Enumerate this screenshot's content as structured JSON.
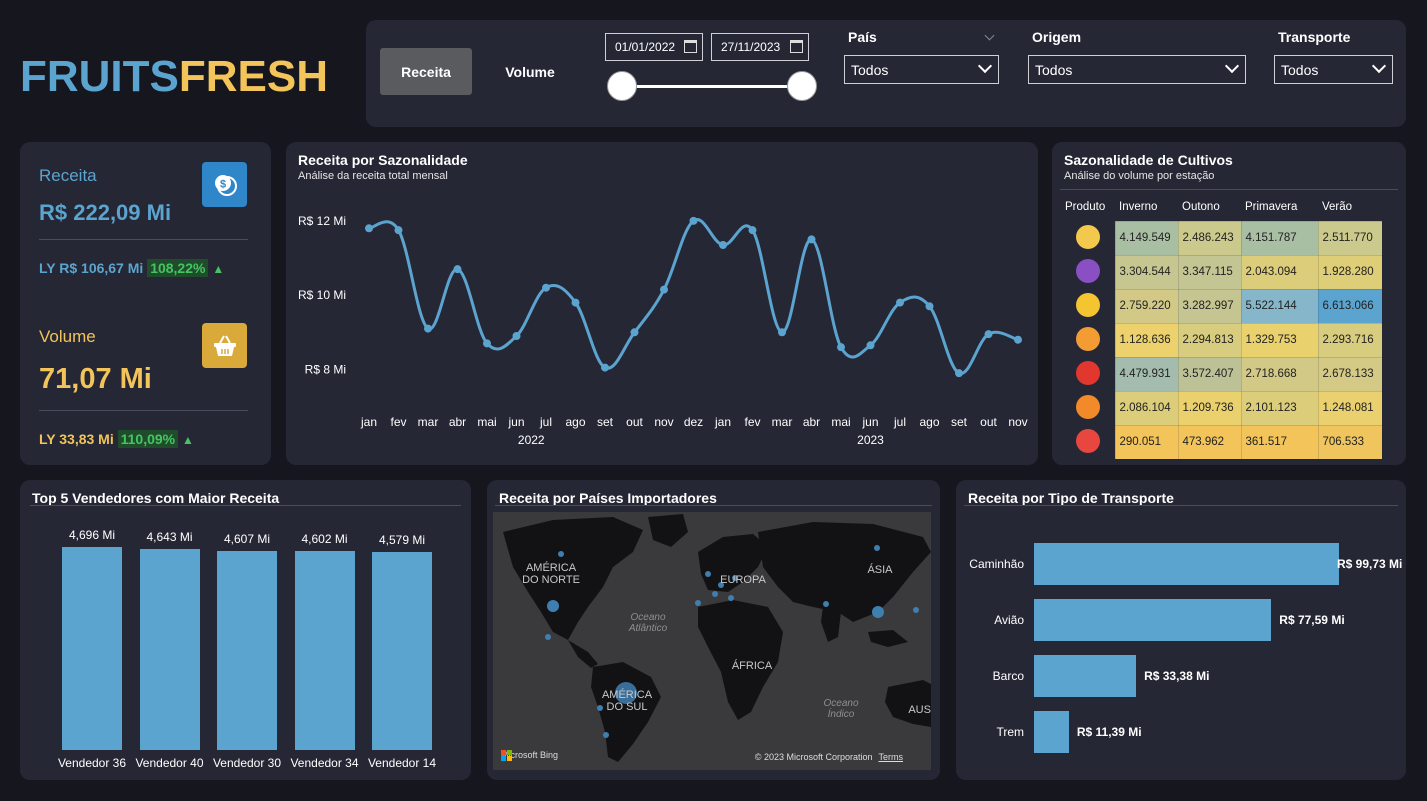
{
  "logo": {
    "part1": "FRUITS",
    "part2": "FRESH"
  },
  "filters": {
    "receita_button": "Receita",
    "volume_button": "Volume",
    "date_start": "01/01/2022",
    "date_end": "27/11/2023",
    "pais_label": "País",
    "pais_value": "Todos",
    "origem_label": "Origem",
    "origem_value": "Todos",
    "transporte_label": "Transporte",
    "transporte_value": "Todos"
  },
  "kpi": {
    "receita_label": "Receita",
    "receita_value": "R$ 222,09 Mi",
    "receita_ly": "LY R$ 106,67 Mi",
    "receita_pct": "108,22%",
    "volume_label": "Volume",
    "volume_value": "71,07 Mi",
    "volume_ly": "LY 33,83 Mi",
    "volume_pct": "110,09%",
    "receita_icon": "coin-dollar-icon",
    "volume_icon": "basket-icon"
  },
  "sazonalidade": {
    "title": "Receita por Sazonalidade",
    "subtitle": "Análise da receita total mensal"
  },
  "cultivos": {
    "title": "Sazonalidade de Cultivos",
    "subtitle": "Análise do volume por estação",
    "headers": [
      "Produto",
      "Inverno",
      "Outono",
      "Primavera",
      "Verão"
    ],
    "rows": [
      {
        "fruit": "banana-icon",
        "color": "#f2c94c",
        "values": [
          "4.149.549",
          "2.486.243",
          "4.151.787",
          "2.511.770"
        ],
        "bg": [
          "#a9bfa4",
          "#cbc98c",
          "#a9bfa4",
          "#cbc98c"
        ]
      },
      {
        "fruit": "grapes-icon",
        "color": "#8a4fc2",
        "values": [
          "3.304.544",
          "3.347.115",
          "2.043.094",
          "1.928.280"
        ],
        "bg": [
          "#c6c690",
          "#c3c592",
          "#dccd7a",
          "#dfce78"
        ]
      },
      {
        "fruit": "lemon-icon",
        "color": "#f4c531",
        "values": [
          "2.759.220",
          "3.282.997",
          "5.522.144",
          "6.613.066"
        ],
        "bg": [
          "#d2c987",
          "#c4c590",
          "#86b6c9",
          "#5ba4cf"
        ]
      },
      {
        "fruit": "mango-icon",
        "color": "#f39c33",
        "values": [
          "1.128.636",
          "2.294.813",
          "1.329.753",
          "2.293.716"
        ],
        "bg": [
          "#ecd16c",
          "#d8cc7e",
          "#e9d16e",
          "#d8cc7e"
        ]
      },
      {
        "fruit": "apple-icon",
        "color": "#e2372f",
        "values": [
          "4.479.931",
          "3.572.407",
          "2.718.668",
          "2.678.133"
        ],
        "bg": [
          "#a4bcad",
          "#bdc296",
          "#d2c987",
          "#d4ca85"
        ]
      },
      {
        "fruit": "orange-icon",
        "color": "#f28a2a",
        "values": [
          "2.086.104",
          "1.209.736",
          "2.101.123",
          "1.248.081"
        ],
        "bg": [
          "#dccd7a",
          "#ebd16d",
          "#dccd7a",
          "#ead06e"
        ]
      },
      {
        "fruit": "watermelon-icon",
        "color": "#e8473f",
        "values": [
          "290.051",
          "473.962",
          "361.517",
          "706.533"
        ],
        "bg": [
          "#f2c45a",
          "#f2c45a",
          "#f2c45a",
          "#f0c55e"
        ]
      }
    ]
  },
  "chart_data": [
    {
      "type": "line",
      "title": "Receita por Sazonalidade",
      "x": [
        "jan",
        "fev",
        "mar",
        "abr",
        "mai",
        "jun",
        "jul",
        "ago",
        "set",
        "out",
        "nov",
        "dez",
        "jan",
        "fev",
        "mar",
        "abr",
        "mai",
        "jun",
        "jul",
        "ago",
        "set",
        "out",
        "nov"
      ],
      "x_groups": [
        {
          "label": "2022",
          "start": 0,
          "end": 11
        },
        {
          "label": "2023",
          "start": 12,
          "end": 22
        }
      ],
      "values": [
        11.8,
        11.75,
        9.1,
        10.7,
        8.7,
        8.9,
        10.2,
        9.8,
        8.05,
        9.0,
        10.15,
        12.0,
        11.35,
        11.75,
        9.0,
        11.5,
        8.6,
        8.65,
        9.8,
        9.7,
        7.9,
        8.95,
        8.8
      ],
      "y_ticks": [
        "R$ 12 Mi",
        "R$ 10 Mi",
        "R$ 8 Mi"
      ],
      "y_tick_values": [
        12,
        10,
        8
      ],
      "ylim": [
        7.5,
        12.4
      ],
      "color": "#5ba4cf"
    },
    {
      "type": "bar",
      "title": "Top 5 Vendedores com Maior Receita",
      "categories": [
        "Vendedor 36",
        "Vendedor 40",
        "Vendedor 30",
        "Vendedor 34",
        "Vendedor 14"
      ],
      "values": [
        4.696,
        4.643,
        4.607,
        4.602,
        4.579
      ],
      "labels": [
        "4,696 Mi",
        "4,643 Mi",
        "4,607 Mi",
        "4,602 Mi",
        "4,579 Mi"
      ],
      "color": "#5ba4cf"
    },
    {
      "type": "bar",
      "orientation": "horizontal",
      "title": "Receita por Tipo de Transporte",
      "categories": [
        "Caminhão",
        "Avião",
        "Barco",
        "Trem"
      ],
      "values": [
        99.73,
        77.59,
        33.38,
        11.39
      ],
      "labels": [
        "R$ 99,73 Mi",
        "R$ 77,59 Mi",
        "R$ 33,38 Mi",
        "R$ 11,39 Mi"
      ],
      "color": "#5ba4cf"
    }
  ],
  "map": {
    "title": "Receita por Países Importadores",
    "labels": {
      "na": "AMÉRICA\nDO NORTE",
      "eu": "EUROPA",
      "as": "ÁSIA",
      "af": "ÁFRICA",
      "sa": "AMÉRICA\nDO SUL",
      "aus": "AUST",
      "ocean_atl": "Oceano\nAtlântico",
      "ocean_ind": "Oceano\nÍndico"
    },
    "bing": "Microsoft Bing",
    "copyright": "© 2023 Microsoft Corporation",
    "terms": "Terms"
  }
}
